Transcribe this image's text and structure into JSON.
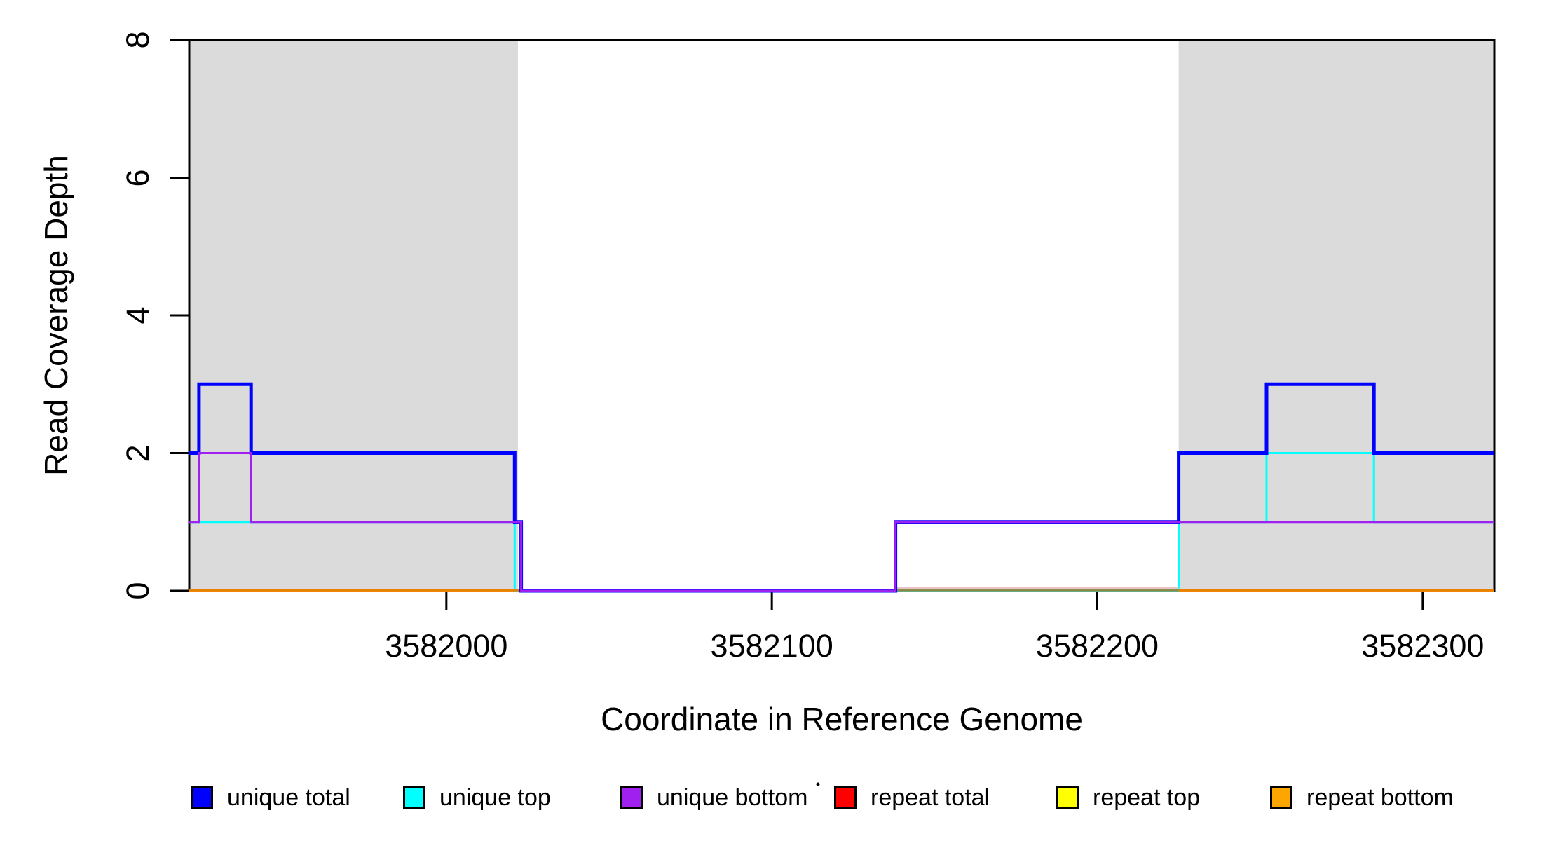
{
  "figure": {
    "background": "#ffffff",
    "plot_border_color": "#000000",
    "shade_color": "#DBDBDB"
  },
  "chart_data": {
    "type": "line",
    "subtype": "step-coverage",
    "title": "",
    "xlabel": "Coordinate in Reference Genome",
    "ylabel": "Read Coverage Depth",
    "xlim": [
      3581921,
      3582322
    ],
    "ylim": [
      0,
      8
    ],
    "grid": false,
    "legend_position": "bottom",
    "x_ticks": [
      {
        "value": 3582000,
        "label": "3582000"
      },
      {
        "value": 3582100,
        "label": "3582100"
      },
      {
        "value": 3582200,
        "label": "3582200"
      },
      {
        "value": 3582300,
        "label": "3582300"
      }
    ],
    "y_ticks": [
      {
        "value": 0,
        "label": "0"
      },
      {
        "value": 2,
        "label": "2"
      },
      {
        "value": 4,
        "label": "4"
      },
      {
        "value": 6,
        "label": "6"
      },
      {
        "value": 8,
        "label": "8"
      }
    ],
    "repeat_regions": [
      {
        "start": 3581921,
        "end": 3582022
      },
      {
        "start": 3582225,
        "end": 3582322
      }
    ],
    "series": [
      {
        "name": "repeat total",
        "color": "#FF0000",
        "line_width": 3,
        "points": [
          [
            3581921,
            0
          ],
          [
            3582322,
            0
          ]
        ]
      },
      {
        "name": "repeat top",
        "color": "#FFFF00",
        "line_width": 3,
        "points": [
          [
            3581921,
            0
          ],
          [
            3582322,
            0
          ]
        ]
      },
      {
        "name": "repeat bottom",
        "color": "#FFA500",
        "line_width": 3,
        "points": [
          [
            3581921,
            0
          ],
          [
            3582322,
            0
          ]
        ]
      },
      {
        "name": "unique top",
        "color": "#00FFFF",
        "line_width": 3,
        "points": [
          [
            3581921,
            1
          ],
          [
            3582021,
            0
          ],
          [
            3582225,
            1
          ],
          [
            3582252,
            2
          ],
          [
            3582285,
            1
          ],
          [
            3582322,
            1
          ]
        ]
      },
      {
        "name": "unique total",
        "color": "#0000FF",
        "line_width": 5,
        "points": [
          [
            3581921,
            2
          ],
          [
            3581924,
            3
          ],
          [
            3581940,
            2
          ],
          [
            3582021,
            1
          ],
          [
            3582023,
            0
          ],
          [
            3582138,
            1
          ],
          [
            3582225,
            2
          ],
          [
            3582252,
            3
          ],
          [
            3582285,
            2
          ],
          [
            3582322,
            2
          ]
        ]
      },
      {
        "name": "unique bottom",
        "color": "#A020F0",
        "line_width": 3,
        "points": [
          [
            3581921,
            1
          ],
          [
            3581924,
            2
          ],
          [
            3581940,
            1
          ],
          [
            3582023,
            0
          ],
          [
            3582138,
            1
          ],
          [
            3582322,
            1
          ]
        ]
      }
    ],
    "zero_line_segments": [
      {
        "from": 3581921,
        "to": 3582023,
        "color": "#E87F00"
      },
      {
        "from": 3582023,
        "to": 3582138,
        "color": "#7C4DEB"
      },
      {
        "from": 3582138,
        "to": 3582225,
        "color": "#8A8B4A",
        "fringe_color": "#EAC4C4"
      },
      {
        "from": 3582225,
        "to": 3582322,
        "color": "#E87F00"
      }
    ],
    "legend": [
      {
        "label": "unique total",
        "color": "#0000FF"
      },
      {
        "label": "unique top",
        "color": "#00FFFF"
      },
      {
        "label": "unique bottom",
        "color": "#A020F0"
      },
      {
        "label": "repeat total",
        "color": "#FF0000"
      },
      {
        "label": "repeat top",
        "color": "#FFFF00"
      },
      {
        "label": "repeat bottom",
        "color": "#FFA500"
      }
    ]
  },
  "artifacts": {
    "stray_dot": {
      "glyph": "·"
    }
  }
}
